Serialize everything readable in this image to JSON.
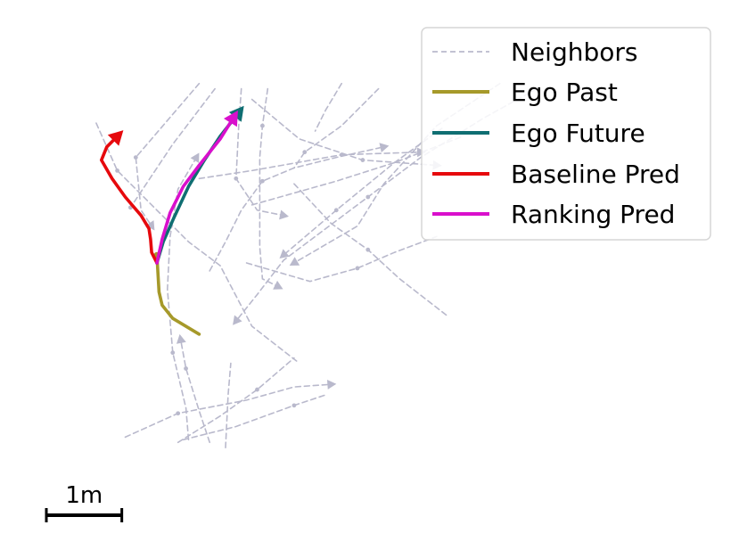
{
  "chart_data": {
    "type": "line",
    "title": "",
    "xlabel": "",
    "ylabel": "",
    "axes_visible": false,
    "grid": false,
    "legend_position": "top-right",
    "units": "m",
    "xlim": [
      -2.0,
      7.6
    ],
    "ylim": [
      -3.6,
      3.4
    ],
    "scale_bar": {
      "label": "1m",
      "length": 1
    },
    "colors": {
      "neighbors": "#b9b9cc",
      "ego_past": "#a6992a",
      "ego_future": "#0f6e72",
      "baseline": "#e6090d",
      "ranking": "#d90fcc"
    },
    "legend": [
      {
        "key": "neighbors",
        "label": "Neighbors",
        "style": "dashed"
      },
      {
        "key": "ego_past",
        "label": "Ego Past",
        "style": "solid"
      },
      {
        "key": "ego_future",
        "label": "Ego Future",
        "style": "solid"
      },
      {
        "key": "baseline",
        "label": "Baseline Pred",
        "style": "solid"
      },
      {
        "key": "ranking",
        "label": "Ranking Pred",
        "style": "solid"
      }
    ],
    "series": [
      {
        "name": "Ego Past",
        "key": "ego_past",
        "arrow": false,
        "start_dot": true,
        "points": [
          [
            0,
            0.15
          ],
          [
            0.02,
            -0.2
          ],
          [
            0.04,
            -0.55
          ],
          [
            0.1,
            -0.8
          ],
          [
            0.3,
            -1.05
          ],
          [
            0.8,
            -1.35
          ]
        ]
      },
      {
        "name": "Ego Future",
        "key": "ego_future",
        "arrow": true,
        "points": [
          [
            0,
            0
          ],
          [
            0.12,
            0.4
          ],
          [
            0.32,
            0.85
          ],
          [
            0.6,
            1.45
          ],
          [
            0.9,
            1.95
          ],
          [
            1.2,
            2.4
          ],
          [
            1.55,
            2.85
          ]
        ]
      },
      {
        "name": "Baseline Pred",
        "key": "baseline",
        "arrow": true,
        "points": [
          [
            0,
            0
          ],
          [
            -0.1,
            0.2
          ],
          [
            -0.12,
            0.45
          ],
          [
            -0.15,
            0.65
          ],
          [
            -0.3,
            0.9
          ],
          [
            -0.6,
            1.25
          ],
          [
            -0.85,
            1.6
          ],
          [
            -1.05,
            1.95
          ],
          [
            -0.95,
            2.2
          ],
          [
            -0.75,
            2.4
          ]
        ]
      },
      {
        "name": "Ranking Pred",
        "key": "ranking",
        "arrow": true,
        "points": [
          [
            0,
            0
          ],
          [
            0.1,
            0.45
          ],
          [
            0.25,
            0.95
          ],
          [
            0.5,
            1.45
          ],
          [
            0.8,
            1.85
          ],
          [
            1.2,
            2.35
          ],
          [
            1.45,
            2.75
          ]
        ]
      }
    ],
    "neighbors": [
      {
        "arrow": false,
        "dots": [
          1
        ],
        "points": [
          [
            -1.15,
            2.65
          ],
          [
            -0.75,
            1.75
          ],
          [
            0.1,
            0.9
          ],
          [
            0.6,
            0.4
          ],
          [
            1.2,
            -0.05
          ],
          [
            1.8,
            -1.2
          ],
          [
            2.7,
            -1.9
          ]
        ]
      },
      {
        "arrow": false,
        "dots": [
          2
        ],
        "points": [
          [
            1.1,
            3.3
          ],
          [
            0.3,
            2.25
          ],
          [
            -0.5,
            1.05
          ]
        ]
      },
      {
        "arrow": true,
        "dots": [
          2
        ],
        "points": [
          [
            0.6,
            -3.35
          ],
          [
            0.55,
            -2.75
          ],
          [
            0.3,
            -1.7
          ],
          [
            0.2,
            -0.5
          ],
          [
            0.25,
            0.5
          ],
          [
            0.4,
            1.4
          ],
          [
            0.75,
            2.0
          ]
        ]
      },
      {
        "arrow": true,
        "dots": [
          2
        ],
        "points": [
          [
            1.0,
            -3.4
          ],
          [
            0.8,
            -2.8
          ],
          [
            0.55,
            -2.0
          ],
          [
            0.45,
            -1.45
          ]
        ]
      },
      {
        "arrow": false,
        "dots": [],
        "points": [
          [
            1.3,
            -3.5
          ],
          [
            1.35,
            -2.5
          ],
          [
            1.4,
            -1.9
          ]
        ]
      },
      {
        "arrow": true,
        "dots": [
          1
        ],
        "points": [
          [
            2.1,
            3.3
          ],
          [
            2.0,
            2.6
          ],
          [
            1.95,
            2.0
          ],
          [
            1.95,
            1.0
          ],
          [
            1.95,
            0.3
          ],
          [
            2.0,
            -0.3
          ],
          [
            2.3,
            -0.45
          ]
        ]
      },
      {
        "arrow": true,
        "dots": [
          2
        ],
        "points": [
          [
            1.6,
            3.3
          ],
          [
            1.55,
            2.6
          ],
          [
            1.5,
            1.6
          ],
          [
            1.9,
            1.0
          ],
          [
            2.4,
            0.9
          ]
        ]
      },
      {
        "arrow": true,
        "dots": [
          2
        ],
        "points": [
          [
            0.8,
            1.6
          ],
          [
            1.8,
            1.75
          ],
          [
            3.5,
            2.05
          ],
          [
            5.0,
            2.1
          ]
        ]
      },
      {
        "arrow": true,
        "dots": [
          2
        ],
        "points": [
          [
            1.8,
            3.1
          ],
          [
            2.7,
            2.35
          ],
          [
            3.9,
            1.95
          ],
          [
            5.3,
            1.85
          ]
        ]
      },
      {
        "arrow": true,
        "dots": [
          2
        ],
        "points": [
          [
            5.4,
            2.55
          ],
          [
            4.5,
            1.9
          ],
          [
            3.4,
            1.0
          ],
          [
            2.4,
            0.15
          ]
        ]
      },
      {
        "arrow": true,
        "dots": [
          3
        ],
        "points": [
          [
            7.2,
            3.3
          ],
          [
            6.2,
            2.75
          ],
          [
            5.0,
            2.0
          ],
          [
            4.0,
            1.25
          ],
          [
            3.2,
            0.65
          ],
          [
            2.4,
            0.05
          ],
          [
            1.9,
            -0.6
          ],
          [
            1.5,
            -1.1
          ]
        ]
      },
      {
        "arrow": false,
        "dots": [
          2
        ],
        "points": [
          [
            2.6,
            1.5
          ],
          [
            3.3,
            0.75
          ],
          [
            4.0,
            0.25
          ],
          [
            4.6,
            -0.3
          ],
          [
            5.5,
            -1.0
          ]
        ]
      },
      {
        "arrow": true,
        "dots": [],
        "points": [
          [
            6.5,
            3.4
          ],
          [
            5.3,
            2.6
          ],
          [
            4.3,
            1.5
          ],
          [
            3.8,
            0.7
          ],
          [
            2.6,
            0.0
          ]
        ]
      },
      {
        "arrow": false,
        "dots": [
          2
        ],
        "points": [
          [
            1.7,
            0.0
          ],
          [
            2.9,
            -0.35
          ],
          [
            3.8,
            -0.1
          ],
          [
            4.5,
            0.2
          ],
          [
            5.3,
            0.5
          ]
        ]
      },
      {
        "arrow": false,
        "dots": [],
        "points": [
          [
            1.8,
            1.1
          ],
          [
            3.4,
            1.55
          ],
          [
            4.5,
            1.9
          ],
          [
            5.8,
            2.4
          ]
        ]
      },
      {
        "arrow": true,
        "dots": [
          1
        ],
        "points": [
          [
            -0.6,
            -3.3
          ],
          [
            0.4,
            -2.85
          ],
          [
            1.7,
            -2.6
          ],
          [
            2.6,
            -2.35
          ],
          [
            3.3,
            -2.3
          ]
        ]
      },
      {
        "arrow": false,
        "dots": [
          2
        ],
        "points": [
          [
            0.4,
            -3.4
          ],
          [
            1.2,
            -2.9
          ],
          [
            1.9,
            -2.4
          ],
          [
            2.6,
            -1.8
          ]
        ]
      },
      {
        "arrow": false,
        "dots": [
          2
        ],
        "points": [
          [
            0.5,
            -3.35
          ],
          [
            1.5,
            -3.1
          ],
          [
            2.6,
            -2.7
          ],
          [
            3.2,
            -2.5
          ]
        ]
      },
      {
        "arrow": true,
        "dots": [
          2
        ],
        "points": [
          [
            0.8,
            3.4
          ],
          [
            0.2,
            2.7
          ],
          [
            -0.4,
            2.0
          ],
          [
            -0.3,
            1.0
          ],
          [
            -0.1,
            0.7
          ]
        ]
      },
      {
        "arrow": false,
        "dots": [
          2
        ],
        "points": [
          [
            4.2,
            3.3
          ],
          [
            3.5,
            2.6
          ],
          [
            2.8,
            2.1
          ],
          [
            2.6,
            1.8
          ]
        ]
      },
      {
        "arrow": false,
        "dots": [],
        "points": [
          [
            3.5,
            3.4
          ],
          [
            3.2,
            2.9
          ],
          [
            3.0,
            2.5
          ]
        ]
      },
      {
        "arrow": true,
        "dots": [
          3
        ],
        "points": [
          [
            1.0,
            -0.15
          ],
          [
            1.3,
            0.4
          ],
          [
            1.6,
            1.0
          ],
          [
            2.0,
            1.55
          ],
          [
            2.6,
            1.8
          ],
          [
            3.4,
            2.0
          ],
          [
            4.3,
            2.2
          ]
        ]
      }
    ]
  }
}
